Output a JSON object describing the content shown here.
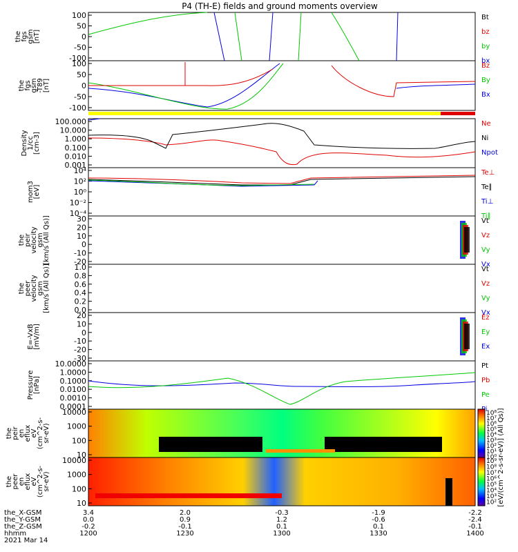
{
  "title": "P4 (TH-E) fields and ground moments overview",
  "colors": {
    "black": "#000000",
    "red": "#e00000",
    "green": "#00c800",
    "blue": "#0000e0",
    "yellow": "#ffff00",
    "bar_red": "#e00000"
  },
  "panels": [
    {
      "id": "p1",
      "ylabel": [
        "the",
        "fgs",
        "gsm",
        "[nT]"
      ],
      "yticks": [
        "100",
        "50",
        "0",
        "-50",
        "-100"
      ],
      "legend": [
        {
          "t": "Bt",
          "c": "black"
        },
        {
          "t": "bz",
          "c": "red"
        },
        {
          "t": "by",
          "c": "green"
        },
        {
          "t": "bx",
          "c": "blue"
        }
      ]
    },
    {
      "id": "p2",
      "ylabel": [
        "the",
        "fgs",
        "gsm",
        "-T89",
        "[nT]"
      ],
      "yticks": [
        "100",
        "50",
        "0",
        "-50",
        "-100"
      ],
      "legend": [
        {
          "t": "Bz",
          "c": "red"
        },
        {
          "t": "By",
          "c": "green"
        },
        {
          "t": "Bx",
          "c": "blue"
        }
      ]
    },
    {
      "id": "p3",
      "ylabel": [
        "Density",
        "1/cc",
        "[cm-3]"
      ],
      "yticks": [
        "100.000",
        "10.000",
        "1.000",
        "0.100",
        "0.010",
        "0.001"
      ],
      "legend": [
        {
          "t": "Ne",
          "c": "red"
        },
        {
          "t": "Ni",
          "c": "black"
        },
        {
          "t": "Npot",
          "c": "blue"
        }
      ]
    },
    {
      "id": "p4",
      "ylabel": [
        "mom3",
        "[eV]"
      ],
      "yticks": [
        "10⁴",
        "10²",
        "10⁰",
        "10⁻²",
        "10⁻⁴"
      ],
      "legend": [
        {
          "t": "Te⊥",
          "c": "red"
        },
        {
          "t": "Te∥",
          "c": "black"
        },
        {
          "t": "Ti⊥",
          "c": "blue"
        },
        {
          "t": "Ti∥",
          "c": "green"
        }
      ]
    },
    {
      "id": "p5",
      "ylabel": [
        "the",
        "peir",
        "velocity",
        "gsm",
        "[km/s (All Qs)]"
      ],
      "yticks": [
        "30",
        "20",
        "10",
        "0",
        "-10",
        "-20"
      ],
      "legend": [
        {
          "t": "Vt",
          "c": "black"
        },
        {
          "t": "Vz",
          "c": "red"
        },
        {
          "t": "Vy",
          "c": "green"
        },
        {
          "t": "Vx",
          "c": "blue"
        }
      ]
    },
    {
      "id": "p6",
      "ylabel": [
        "the",
        "peer",
        "velocity",
        "gsm",
        "[km/s (All Qs)]"
      ],
      "yticks": [
        "1.0",
        "0.8",
        "0.6",
        "0.4",
        "0.2",
        "0.0"
      ],
      "legend": [
        {
          "t": "Vt",
          "c": "black"
        },
        {
          "t": "Vz",
          "c": "red"
        },
        {
          "t": "Vy",
          "c": "green"
        },
        {
          "t": "Vx",
          "c": "blue"
        }
      ]
    },
    {
      "id": "p7",
      "ylabel": [
        "E=-VxB",
        "[mV/m]"
      ],
      "yticks": [
        "20",
        "10",
        "0",
        "-10",
        "-20",
        "-30"
      ],
      "legend": [
        {
          "t": "Ez",
          "c": "red"
        },
        {
          "t": "Ey",
          "c": "green"
        },
        {
          "t": "Ex",
          "c": "blue"
        }
      ]
    },
    {
      "id": "p8",
      "ylabel": [
        "Pressure",
        "[nPa]"
      ],
      "yticks": [
        "10.0000",
        "1.0000",
        "0.1000",
        "0.0100",
        "0.0010",
        "0.0001"
      ],
      "legend": [
        {
          "t": "Pt",
          "c": "black"
        },
        {
          "t": "Pb",
          "c": "red"
        },
        {
          "t": "Pe",
          "c": "green"
        },
        {
          "t": "Pi",
          "c": "blue"
        }
      ]
    },
    {
      "id": "p9",
      "ylabel": [
        "the",
        "peir",
        "en",
        "eflux",
        "eV",
        "(cm^2-s-",
        "sr-eV)"
      ],
      "yticks": [
        "10000",
        "1000",
        "100",
        "10"
      ],
      "legend": []
    },
    {
      "id": "p10",
      "ylabel": [
        "the",
        "peer",
        "en",
        "eflux",
        "eV",
        "(cm^2-s-",
        "sr-eV)"
      ],
      "yticks": [
        "10000",
        "1000",
        "100",
        "10"
      ],
      "legend": []
    }
  ],
  "colorbar": {
    "ticks1": [
      "10⁸",
      "10⁷",
      "10⁶",
      "10⁵",
      "10⁴",
      "10³",
      "10²",
      "10¹",
      "10⁰"
    ],
    "ticks2": [
      "10⁹",
      "10⁸",
      "10⁷",
      "10⁶",
      "10⁵",
      "10⁴",
      "10³",
      "10²"
    ],
    "label": "[eV/(cm^2-s-sr-eV)] (All Qs)]"
  },
  "xaxis": {
    "rows": [
      {
        "label": "the_X-GSM",
        "values": [
          "3.4",
          "2.0",
          "-0.3",
          "-1.9",
          "-2.2"
        ]
      },
      {
        "label": "the_Y-GSM",
        "values": [
          "0.0",
          "0.9",
          "1.2",
          "-0.6",
          "-2.4"
        ]
      },
      {
        "label": "the_Z-GSM",
        "values": [
          "-0.2",
          "-0.1",
          "0.1",
          "0.1",
          "-0.1"
        ]
      },
      {
        "label": "hhmm",
        "values": [
          "1200",
          "1230",
          "1300",
          "1330",
          "1400"
        ]
      }
    ],
    "date": "2021 Mar 14"
  },
  "chart_data": {
    "type": "line",
    "title": "P4 (TH-E) fields and ground moments overview",
    "x": [
      "1200",
      "1230",
      "1300",
      "1330",
      "1400"
    ],
    "series": [
      {
        "name": "Ni",
        "values": [
          2,
          1,
          5,
          0.1,
          0.05
        ]
      },
      {
        "name": "Ne",
        "values": [
          1.5,
          1,
          0.3,
          0.1,
          0.1
        ]
      },
      {
        "name": "Pe",
        "values": [
          0.01,
          0.04,
          0.001,
          0.04,
          0.05
        ]
      },
      {
        "name": "Pi",
        "values": [
          0.05,
          0.01,
          0.01,
          0.01,
          0.05
        ]
      }
    ]
  }
}
